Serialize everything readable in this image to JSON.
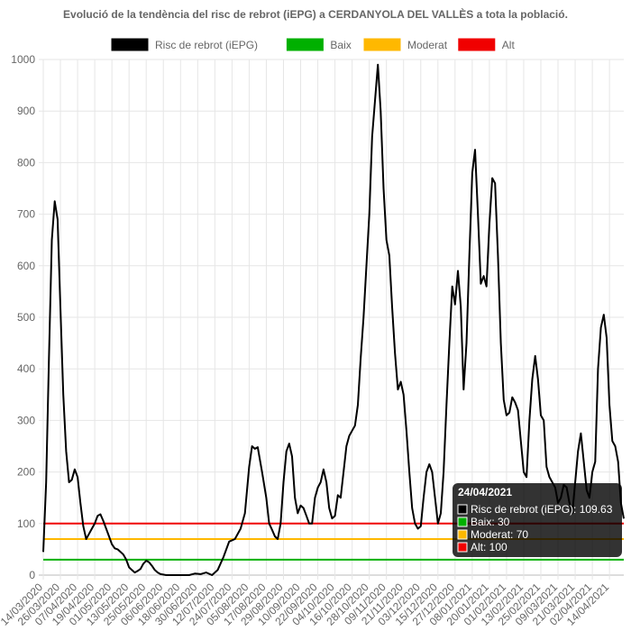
{
  "chart_data": {
    "type": "line",
    "title": "Evolució de la tendència del risc de rebrot (iEPG) a CERDANYOLA DEL VALLÈS a tota la població.",
    "xlabel": "",
    "ylabel": "",
    "ylim": [
      0,
      1000
    ],
    "yticks": [
      0,
      100,
      200,
      300,
      400,
      500,
      600,
      700,
      800,
      900,
      1000
    ],
    "grid": true,
    "legend_position": "top",
    "x_tick_labels": [
      "14/03/2020",
      "26/03/2020",
      "07/04/2020",
      "19/04/2020",
      "01/05/2020",
      "13/05/2020",
      "25/05/2020",
      "06/06/2020",
      "18/06/2020",
      "30/06/2020",
      "12/07/2020",
      "24/07/2020",
      "05/08/2020",
      "17/08/2020",
      "29/08/2020",
      "10/09/2020",
      "22/09/2020",
      "04/10/2020",
      "16/10/2020",
      "28/10/2020",
      "09/11/2020",
      "21/11/2020",
      "03/12/2020",
      "15/12/2020",
      "27/12/2020",
      "08/01/2021",
      "20/01/2021",
      "01/02/2021",
      "13/02/2021",
      "25/02/2021",
      "09/03/2021",
      "21/03/2021",
      "02/04/2021",
      "14/04/2021"
    ],
    "x_start": "2020-03-14",
    "x_end": "2021-04-24",
    "series": [
      {
        "name": "Risc de rebrot (iEPG)",
        "color": "#000000",
        "points": [
          [
            "2020-03-14",
            45
          ],
          [
            "2020-03-16",
            180
          ],
          [
            "2020-03-18",
            420
          ],
          [
            "2020-03-20",
            650
          ],
          [
            "2020-03-22",
            725
          ],
          [
            "2020-03-24",
            690
          ],
          [
            "2020-03-26",
            520
          ],
          [
            "2020-03-28",
            350
          ],
          [
            "2020-03-30",
            240
          ],
          [
            "2020-04-01",
            180
          ],
          [
            "2020-04-03",
            185
          ],
          [
            "2020-04-05",
            205
          ],
          [
            "2020-04-07",
            190
          ],
          [
            "2020-04-09",
            140
          ],
          [
            "2020-04-11",
            95
          ],
          [
            "2020-04-13",
            70
          ],
          [
            "2020-04-15",
            80
          ],
          [
            "2020-04-17",
            90
          ],
          [
            "2020-04-19",
            100
          ],
          [
            "2020-04-21",
            115
          ],
          [
            "2020-04-23",
            118
          ],
          [
            "2020-04-25",
            105
          ],
          [
            "2020-04-27",
            90
          ],
          [
            "2020-04-29",
            75
          ],
          [
            "2020-05-01",
            60
          ],
          [
            "2020-05-03",
            52
          ],
          [
            "2020-05-05",
            50
          ],
          [
            "2020-05-07",
            45
          ],
          [
            "2020-05-09",
            40
          ],
          [
            "2020-05-11",
            30
          ],
          [
            "2020-05-13",
            15
          ],
          [
            "2020-05-15",
            10
          ],
          [
            "2020-05-17",
            5
          ],
          [
            "2020-05-19",
            8
          ],
          [
            "2020-05-21",
            12
          ],
          [
            "2020-05-23",
            22
          ],
          [
            "2020-05-25",
            28
          ],
          [
            "2020-05-27",
            25
          ],
          [
            "2020-05-29",
            18
          ],
          [
            "2020-05-31",
            10
          ],
          [
            "2020-06-02",
            5
          ],
          [
            "2020-06-04",
            2
          ],
          [
            "2020-06-08",
            0
          ],
          [
            "2020-06-16",
            0
          ],
          [
            "2020-06-24",
            0
          ],
          [
            "2020-06-28",
            3
          ],
          [
            "2020-07-02",
            2
          ],
          [
            "2020-07-06",
            5
          ],
          [
            "2020-07-10",
            0
          ],
          [
            "2020-07-14",
            10
          ],
          [
            "2020-07-18",
            35
          ],
          [
            "2020-07-22",
            65
          ],
          [
            "2020-07-26",
            70
          ],
          [
            "2020-07-30",
            90
          ],
          [
            "2020-08-02",
            120
          ],
          [
            "2020-08-05",
            210
          ],
          [
            "2020-08-07",
            250
          ],
          [
            "2020-08-09",
            245
          ],
          [
            "2020-08-11",
            248
          ],
          [
            "2020-08-14",
            200
          ],
          [
            "2020-08-17",
            150
          ],
          [
            "2020-08-19",
            100
          ],
          [
            "2020-08-21",
            88
          ],
          [
            "2020-08-23",
            75
          ],
          [
            "2020-08-25",
            70
          ],
          [
            "2020-08-27",
            100
          ],
          [
            "2020-08-29",
            180
          ],
          [
            "2020-08-31",
            240
          ],
          [
            "2020-09-02",
            255
          ],
          [
            "2020-09-04",
            230
          ],
          [
            "2020-09-06",
            150
          ],
          [
            "2020-09-08",
            120
          ],
          [
            "2020-09-10",
            135
          ],
          [
            "2020-09-12",
            130
          ],
          [
            "2020-09-14",
            115
          ],
          [
            "2020-09-16",
            100
          ],
          [
            "2020-09-18",
            100
          ],
          [
            "2020-09-20",
            150
          ],
          [
            "2020-09-22",
            170
          ],
          [
            "2020-09-24",
            180
          ],
          [
            "2020-09-26",
            205
          ],
          [
            "2020-09-28",
            180
          ],
          [
            "2020-09-30",
            130
          ],
          [
            "2020-10-02",
            110
          ],
          [
            "2020-10-04",
            115
          ],
          [
            "2020-10-06",
            155
          ],
          [
            "2020-10-08",
            150
          ],
          [
            "2020-10-10",
            200
          ],
          [
            "2020-10-12",
            250
          ],
          [
            "2020-10-14",
            270
          ],
          [
            "2020-10-16",
            280
          ],
          [
            "2020-10-18",
            290
          ],
          [
            "2020-10-20",
            330
          ],
          [
            "2020-10-22",
            420
          ],
          [
            "2020-10-24",
            500
          ],
          [
            "2020-10-26",
            600
          ],
          [
            "2020-10-28",
            700
          ],
          [
            "2020-10-30",
            850
          ],
          [
            "2020-11-01",
            920
          ],
          [
            "2020-11-03",
            990
          ],
          [
            "2020-11-05",
            900
          ],
          [
            "2020-11-07",
            750
          ],
          [
            "2020-11-09",
            650
          ],
          [
            "2020-11-11",
            620
          ],
          [
            "2020-11-13",
            520
          ],
          [
            "2020-11-15",
            430
          ],
          [
            "2020-11-17",
            360
          ],
          [
            "2020-11-19",
            375
          ],
          [
            "2020-11-21",
            350
          ],
          [
            "2020-11-23",
            280
          ],
          [
            "2020-11-25",
            200
          ],
          [
            "2020-11-27",
            130
          ],
          [
            "2020-11-29",
            100
          ],
          [
            "2020-12-01",
            90
          ],
          [
            "2020-12-03",
            95
          ],
          [
            "2020-12-05",
            150
          ],
          [
            "2020-12-07",
            200
          ],
          [
            "2020-12-09",
            215
          ],
          [
            "2020-12-11",
            200
          ],
          [
            "2020-12-13",
            150
          ],
          [
            "2020-12-15",
            100
          ],
          [
            "2020-12-17",
            120
          ],
          [
            "2020-12-19",
            200
          ],
          [
            "2020-12-21",
            330
          ],
          [
            "2020-12-23",
            450
          ],
          [
            "2020-12-25",
            560
          ],
          [
            "2020-12-27",
            525
          ],
          [
            "2020-12-29",
            590
          ],
          [
            "2020-12-31",
            520
          ],
          [
            "2021-01-02",
            360
          ],
          [
            "2021-01-04",
            450
          ],
          [
            "2021-01-06",
            620
          ],
          [
            "2021-01-08",
            780
          ],
          [
            "2021-01-10",
            825
          ],
          [
            "2021-01-12",
            700
          ],
          [
            "2021-01-14",
            565
          ],
          [
            "2021-01-16",
            580
          ],
          [
            "2021-01-18",
            560
          ],
          [
            "2021-01-20",
            680
          ],
          [
            "2021-01-22",
            770
          ],
          [
            "2021-01-24",
            760
          ],
          [
            "2021-01-26",
            620
          ],
          [
            "2021-01-28",
            450
          ],
          [
            "2021-01-30",
            340
          ],
          [
            "2021-02-01",
            310
          ],
          [
            "2021-02-03",
            315
          ],
          [
            "2021-02-05",
            345
          ],
          [
            "2021-02-07",
            335
          ],
          [
            "2021-02-09",
            320
          ],
          [
            "2021-02-11",
            260
          ],
          [
            "2021-02-13",
            200
          ],
          [
            "2021-02-15",
            190
          ],
          [
            "2021-02-17",
            300
          ],
          [
            "2021-02-19",
            380
          ],
          [
            "2021-02-21",
            425
          ],
          [
            "2021-02-23",
            380
          ],
          [
            "2021-02-25",
            310
          ],
          [
            "2021-02-27",
            300
          ],
          [
            "2021-03-01",
            210
          ],
          [
            "2021-03-03",
            190
          ],
          [
            "2021-03-05",
            180
          ],
          [
            "2021-03-07",
            170
          ],
          [
            "2021-03-09",
            140
          ],
          [
            "2021-03-11",
            150
          ],
          [
            "2021-03-13",
            175
          ],
          [
            "2021-03-15",
            170
          ],
          [
            "2021-03-17",
            140
          ],
          [
            "2021-03-19",
            120
          ],
          [
            "2021-03-21",
            180
          ],
          [
            "2021-03-23",
            240
          ],
          [
            "2021-03-25",
            275
          ],
          [
            "2021-03-27",
            220
          ],
          [
            "2021-03-29",
            165
          ],
          [
            "2021-03-31",
            150
          ],
          [
            "2021-04-02",
            200
          ],
          [
            "2021-04-04",
            220
          ],
          [
            "2021-04-06",
            400
          ],
          [
            "2021-04-08",
            480
          ],
          [
            "2021-04-10",
            505
          ],
          [
            "2021-04-12",
            460
          ],
          [
            "2021-04-14",
            330
          ],
          [
            "2021-04-16",
            260
          ],
          [
            "2021-04-18",
            250
          ],
          [
            "2021-04-20",
            220
          ],
          [
            "2021-04-22",
            140
          ],
          [
            "2021-04-24",
            109.63
          ]
        ]
      },
      {
        "name": "Baix",
        "color": "#00b000",
        "constant": 30
      },
      {
        "name": "Moderat",
        "color": "#ffb800",
        "constant": 70
      },
      {
        "name": "Alt",
        "color": "#f00000",
        "constant": 100
      }
    ],
    "tooltip": {
      "date": "24/04/2021",
      "entries": [
        {
          "text": "Risc de rebrot (iEPG): 109.63",
          "color": "#000000"
        },
        {
          "text": "Baix: 30",
          "color": "#00b000"
        },
        {
          "text": "Moderat: 70",
          "color": "#ffb800"
        },
        {
          "text": "Alt: 100",
          "color": "#f00000"
        }
      ]
    }
  }
}
